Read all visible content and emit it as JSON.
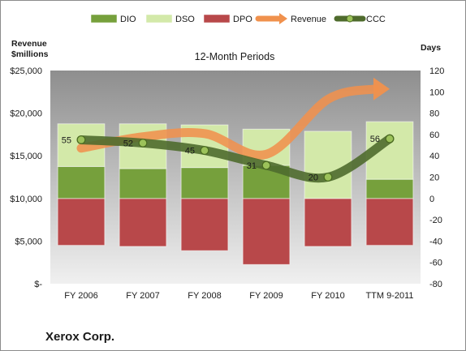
{
  "chart_data": {
    "type": "bar",
    "title": "12-Month Periods",
    "company": "Xerox Corp.",
    "ylabel_left": "Revenue $millions",
    "ylabel_right": "Days",
    "categories": [
      "FY 2006",
      "FY 2007",
      "FY 2008",
      "FY 2009",
      "FY 2010",
      "TTM 9-2011"
    ],
    "left_axis": {
      "min": 0,
      "max": 25000,
      "step": 5000,
      "ticks": [
        "$-",
        "$5,000",
        "$10,000",
        "$15,000",
        "$20,000",
        "$25,000"
      ]
    },
    "right_axis": {
      "min": -80,
      "max": 120,
      "step": 20
    },
    "legend": {
      "position": "top",
      "items": [
        {
          "name": "DIO",
          "kind": "bar"
        },
        {
          "name": "DSO",
          "kind": "bar"
        },
        {
          "name": "DPO",
          "kind": "bar"
        },
        {
          "name": "Revenue",
          "kind": "arrow"
        },
        {
          "name": "CCC",
          "kind": "line"
        }
      ]
    },
    "series": [
      {
        "name": "DIO",
        "axis": "right",
        "values": [
          30,
          28,
          29,
          31,
          0,
          18
        ]
      },
      {
        "name": "DSO",
        "axis": "right",
        "values": [
          40,
          42,
          40,
          34,
          63,
          54
        ]
      },
      {
        "name": "DPO",
        "axis": "right",
        "values": [
          -44,
          -45,
          -49,
          -62,
          -45,
          -44
        ]
      },
      {
        "name": "Revenue",
        "axis": "left",
        "values": [
          15895,
          17228,
          17608,
          15179,
          21633,
          22840
        ]
      },
      {
        "name": "CCC",
        "axis": "right",
        "values": [
          55,
          52,
          45,
          31,
          20,
          56
        ],
        "labels": [
          "55",
          "52",
          "45",
          "31",
          "20",
          "56"
        ]
      }
    ],
    "colors": {
      "DIO": "#76a03c",
      "DSO": "#d3e9a9",
      "DPO": "#b8484a",
      "Revenue": "#f0914d",
      "CCC": "#4f6b2d",
      "plot_bg_top": "#8e8e8e",
      "plot_bg_bottom": "#f0f0f0"
    },
    "grid": false
  }
}
